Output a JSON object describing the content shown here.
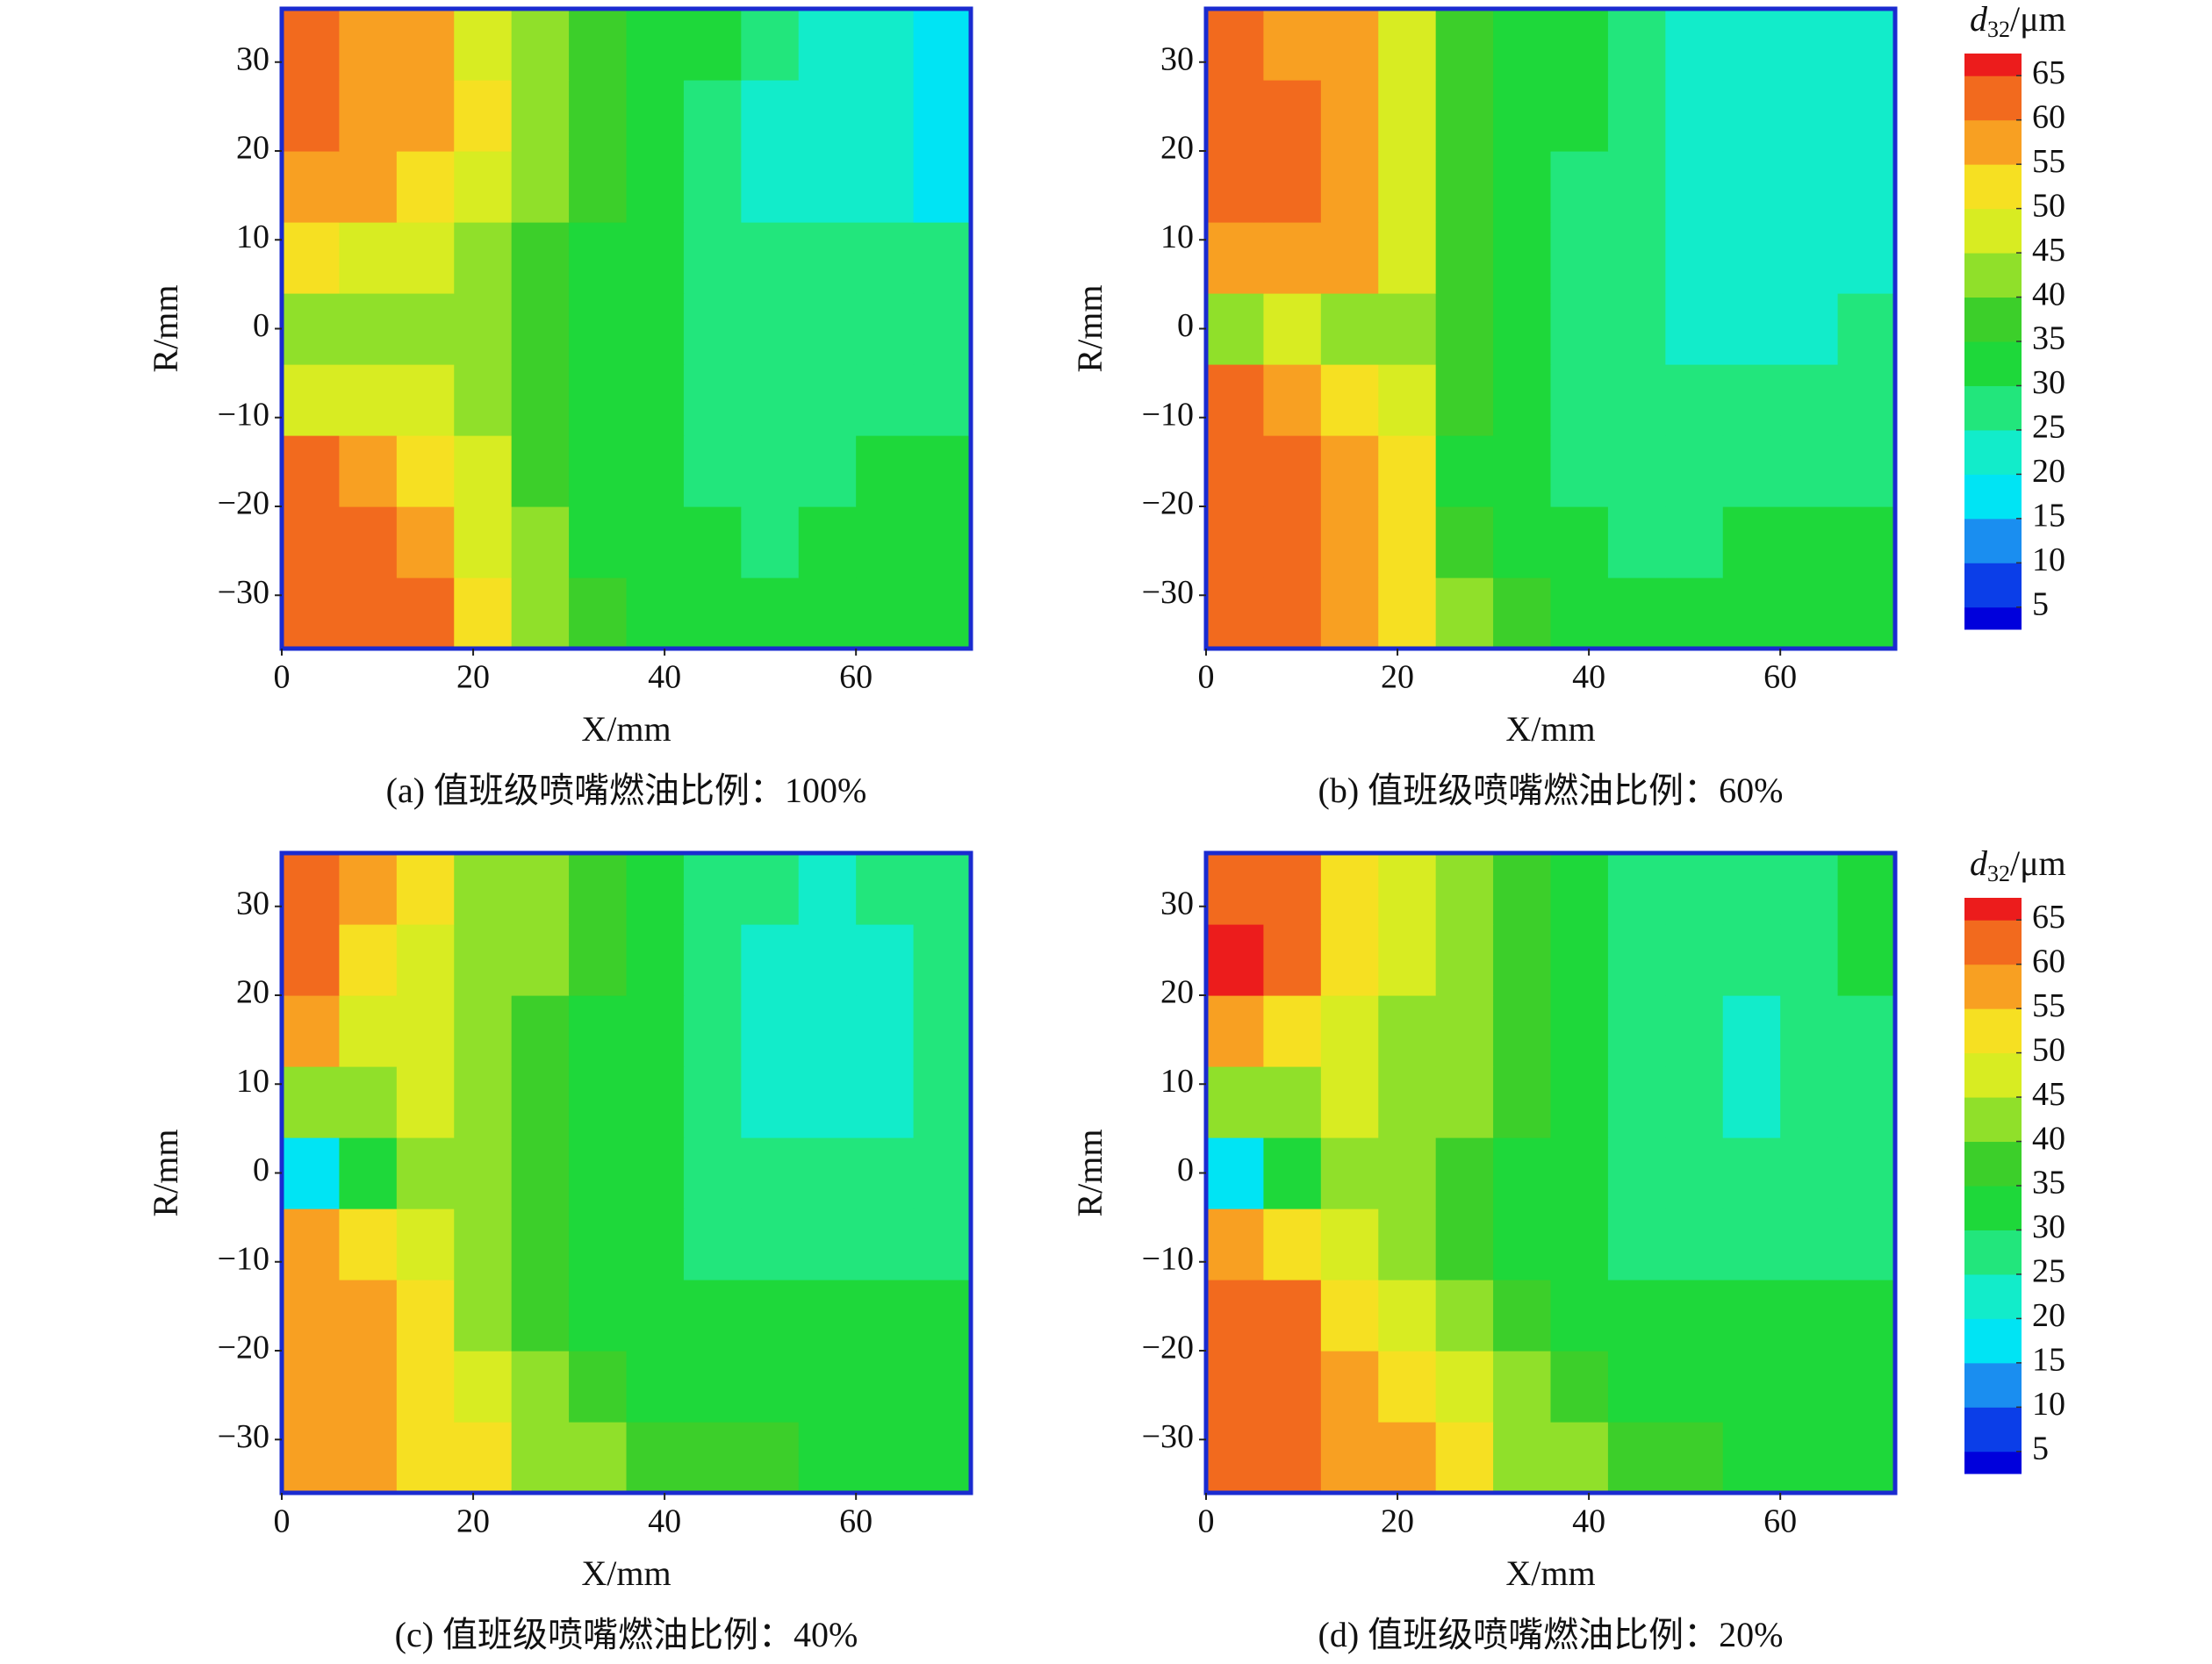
{
  "chart_data": [
    {
      "type": "heatmap",
      "title": "(a) 值班级喷嘴燃油比例：100%",
      "x_label": "X/mm",
      "y_label": "R/mm",
      "xlim": [
        0,
        72
      ],
      "ylim": [
        -36,
        36
      ],
      "xticks": [
        0,
        20,
        40,
        60
      ],
      "yticks": [
        {
          "value": -30,
          "label": "−30"
        },
        {
          "value": -20,
          "label": "−20"
        },
        {
          "value": -10,
          "label": "−10"
        },
        0,
        10,
        20,
        30
      ],
      "x": [
        3,
        9,
        15,
        21,
        27,
        33,
        39,
        45,
        51,
        57,
        63,
        69
      ],
      "y": [
        -32,
        -24,
        -16,
        -8,
        0,
        8,
        16,
        24,
        32
      ],
      "z": [
        [
          63,
          62,
          62,
          52,
          42,
          36,
          32,
          31,
          30,
          32,
          32,
          30
        ],
        [
          63,
          62,
          58,
          48,
          40,
          34,
          31,
          30,
          29,
          30,
          31,
          30
        ],
        [
          60,
          56,
          52,
          46,
          38,
          33,
          30,
          29,
          28,
          28,
          30,
          30
        ],
        [
          48,
          46,
          45,
          42,
          36,
          32,
          30,
          28,
          28,
          28,
          28,
          28
        ],
        [
          40,
          42,
          44,
          42,
          36,
          33,
          30,
          28,
          26,
          26,
          26,
          26
        ],
        [
          50,
          48,
          47,
          44,
          38,
          34,
          30,
          28,
          26,
          26,
          26,
          26
        ],
        [
          58,
          55,
          52,
          48,
          40,
          35,
          32,
          28,
          24,
          22,
          22,
          18
        ],
        [
          62,
          58,
          56,
          50,
          40,
          35,
          32,
          28,
          24,
          22,
          20,
          15
        ],
        [
          62,
          58,
          55,
          48,
          40,
          35,
          32,
          30,
          25,
          22,
          20,
          15
        ]
      ],
      "levels": [
        5,
        10,
        15,
        20,
        25,
        30,
        35,
        40,
        45,
        50,
        55,
        60,
        65
      ],
      "colors": [
        "#0000dc",
        "#0b3ee8",
        "#1a8ef0",
        "#00e4f4",
        "#12ecca",
        "#22e67c",
        "#1ed83a",
        "#3ccf2a",
        "#90e02a",
        "#d8ec22",
        "#f6e022",
        "#f8a022",
        "#f26a1e",
        "#ec1c1c"
      ]
    },
    {
      "type": "heatmap",
      "title": "(b) 值班级喷嘴燃油比例：60%",
      "x_label": "X/mm",
      "y_label": "R/mm",
      "xlim": [
        0,
        72
      ],
      "ylim": [
        -36,
        36
      ],
      "xticks": [
        0,
        20,
        40,
        60
      ],
      "yticks": [
        {
          "value": -30,
          "label": "−30"
        },
        {
          "value": -20,
          "label": "−20"
        },
        {
          "value": -10,
          "label": "−10"
        },
        0,
        10,
        20,
        30
      ],
      "x": [
        3,
        9,
        15,
        21,
        27,
        33,
        39,
        45,
        51,
        57,
        63,
        69
      ],
      "y": [
        -32,
        -24,
        -16,
        -8,
        0,
        8,
        16,
        24,
        32
      ],
      "z": [
        [
          62,
          60,
          58,
          54,
          44,
          36,
          32,
          30,
          31,
          32,
          32,
          31
        ],
        [
          64,
          62,
          58,
          52,
          38,
          32,
          30,
          29,
          29,
          30,
          31,
          31
        ],
        [
          63,
          60,
          58,
          50,
          34,
          30,
          28,
          27,
          27,
          28,
          29,
          29
        ],
        [
          60,
          58,
          52,
          46,
          36,
          30,
          27,
          25,
          25,
          25,
          26,
          27
        ],
        [
          42,
          47,
          44,
          40,
          35,
          31,
          27,
          25,
          23,
          23,
          24,
          25
        ],
        [
          56,
          58,
          56,
          46,
          38,
          33,
          28,
          25,
          22,
          21,
          22,
          23
        ],
        [
          62,
          60,
          57,
          48,
          38,
          33,
          28,
          25,
          23,
          21,
          20,
          22
        ],
        [
          62,
          60,
          56,
          48,
          38,
          33,
          30,
          26,
          23,
          21,
          20,
          22
        ],
        [
          60,
          58,
          56,
          46,
          38,
          33,
          30,
          26,
          24,
          22,
          22,
          22
        ]
      ],
      "levels": [
        5,
        10,
        15,
        20,
        25,
        30,
        35,
        40,
        45,
        50,
        55,
        60,
        65
      ],
      "colors": [
        "#0000dc",
        "#0b3ee8",
        "#1a8ef0",
        "#00e4f4",
        "#12ecca",
        "#22e67c",
        "#1ed83a",
        "#3ccf2a",
        "#90e02a",
        "#d8ec22",
        "#f6e022",
        "#f8a022",
        "#f26a1e",
        "#ec1c1c"
      ],
      "colorbar": {
        "label": {
          "symbol": "d",
          "subscript": "32",
          "unit": "/μm"
        },
        "ticks": [
          5,
          10,
          15,
          20,
          25,
          30,
          35,
          40,
          45,
          50,
          55,
          60,
          65
        ]
      }
    },
    {
      "type": "heatmap",
      "title": "(c) 值班级喷嘴燃油比例：40%",
      "x_label": "X/mm",
      "y_label": "R/mm",
      "xlim": [
        0,
        72
      ],
      "ylim": [
        -36,
        36
      ],
      "xticks": [
        0,
        20,
        40,
        60
      ],
      "yticks": [
        {
          "value": -30,
          "label": "−30"
        },
        {
          "value": -20,
          "label": "−20"
        },
        {
          "value": -10,
          "label": "−10"
        },
        0,
        10,
        20,
        30
      ],
      "x": [
        3,
        9,
        15,
        21,
        27,
        33,
        39,
        45,
        51,
        57,
        63,
        69
      ],
      "y": [
        -32,
        -24,
        -16,
        -8,
        0,
        8,
        16,
        24,
        32
      ],
      "z": [
        [
          58,
          56,
          54,
          50,
          44,
          40,
          38,
          36,
          35,
          34,
          32,
          31
        ],
        [
          58,
          56,
          54,
          46,
          40,
          36,
          34,
          33,
          32,
          32,
          31,
          31
        ],
        [
          58,
          56,
          50,
          44,
          38,
          34,
          32,
          31,
          30,
          30,
          30,
          30
        ],
        [
          56,
          50,
          46,
          42,
          36,
          32,
          30,
          29,
          28,
          28,
          28,
          28
        ],
        [
          18,
          34,
          40,
          40,
          36,
          33,
          30,
          27,
          25,
          25,
          26,
          27
        ],
        [
          42,
          44,
          46,
          42,
          36,
          33,
          30,
          26,
          23,
          22,
          23,
          26
        ],
        [
          56,
          48,
          46,
          44,
          38,
          34,
          30,
          26,
          23,
          22,
          23,
          26
        ],
        [
          60,
          54,
          48,
          44,
          40,
          35,
          31,
          28,
          24,
          23,
          24,
          26
        ],
        [
          62,
          56,
          50,
          44,
          40,
          36,
          32,
          28,
          25,
          24,
          25,
          26
        ]
      ],
      "levels": [
        5,
        10,
        15,
        20,
        25,
        30,
        35,
        40,
        45,
        50,
        55,
        60,
        65
      ],
      "colors": [
        "#0000dc",
        "#0b3ee8",
        "#1a8ef0",
        "#00e4f4",
        "#12ecca",
        "#22e67c",
        "#1ed83a",
        "#3ccf2a",
        "#90e02a",
        "#d8ec22",
        "#f6e022",
        "#f8a022",
        "#f26a1e",
        "#ec1c1c"
      ]
    },
    {
      "type": "heatmap",
      "title": "(d) 值班级喷嘴燃油比例：20%",
      "x_label": "X/mm",
      "y_label": "R/mm",
      "xlim": [
        0,
        72
      ],
      "ylim": [
        -36,
        36
      ],
      "xticks": [
        0,
        20,
        40,
        60
      ],
      "yticks": [
        {
          "value": -30,
          "label": "−30"
        },
        {
          "value": -20,
          "label": "−20"
        },
        {
          "value": -10,
          "label": "−10"
        },
        0,
        10,
        20,
        30
      ],
      "x": [
        3,
        9,
        15,
        21,
        27,
        33,
        39,
        45,
        51,
        57,
        63,
        69
      ],
      "y": [
        -32,
        -24,
        -16,
        -8,
        0,
        8,
        16,
        24,
        32
      ],
      "z": [
        [
          62,
          60,
          58,
          56,
          50,
          44,
          40,
          37,
          35,
          34,
          32,
          31
        ],
        [
          64,
          62,
          58,
          52,
          46,
          40,
          36,
          34,
          33,
          33,
          32,
          31
        ],
        [
          64,
          60,
          54,
          48,
          42,
          36,
          33,
          31,
          30,
          30,
          30,
          31
        ],
        [
          58,
          54,
          46,
          42,
          38,
          34,
          31,
          29,
          28,
          28,
          29,
          29
        ],
        [
          18,
          32,
          42,
          42,
          38,
          34,
          30,
          27,
          26,
          26,
          27,
          28
        ],
        [
          40,
          44,
          46,
          44,
          40,
          36,
          32,
          27,
          25,
          24,
          26,
          28
        ],
        [
          58,
          50,
          46,
          44,
          40,
          36,
          32,
          28,
          25,
          24,
          26,
          29
        ],
        [
          66,
          62,
          50,
          46,
          40,
          35,
          32,
          28,
          26,
          26,
          27,
          30
        ],
        [
          64,
          60,
          52,
          46,
          40,
          35,
          32,
          28,
          27,
          27,
          28,
          30
        ]
      ],
      "levels": [
        5,
        10,
        15,
        20,
        25,
        30,
        35,
        40,
        45,
        50,
        55,
        60,
        65
      ],
      "colors": [
        "#0000dc",
        "#0b3ee8",
        "#1a8ef0",
        "#00e4f4",
        "#12ecca",
        "#22e67c",
        "#1ed83a",
        "#3ccf2a",
        "#90e02a",
        "#d8ec22",
        "#f6e022",
        "#f8a022",
        "#f26a1e",
        "#ec1c1c"
      ],
      "colorbar": {
        "label": {
          "symbol": "d",
          "subscript": "32",
          "unit": "/μm"
        },
        "ticks": [
          5,
          10,
          15,
          20,
          25,
          30,
          35,
          40,
          45,
          50,
          55,
          60,
          65
        ]
      }
    }
  ]
}
